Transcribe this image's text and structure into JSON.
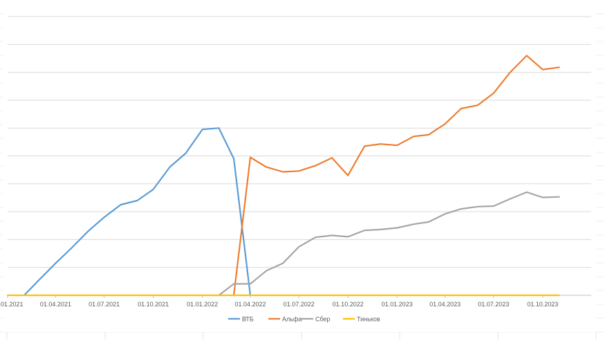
{
  "chart_data": {
    "type": "line",
    "title": "",
    "xlabel": "",
    "ylabel": "",
    "grid": true,
    "legend_position": "bottom",
    "x_ticks": [
      "01.01.2021",
      "01.04.2021",
      "01.07.2021",
      "01.10.2021",
      "01.01.2022",
      "01.04.2022",
      "01.07.2022",
      "01.10.2022",
      "01.01.2023",
      "01.04.2023",
      "01.07.2023",
      "01.10.2023"
    ],
    "x_range": [
      "2021-01-01",
      "2023-12-31"
    ],
    "ylim": [
      0,
      100
    ],
    "series": [
      {
        "name": "ВТБ",
        "color": "#5b9bd5",
        "points": [
          [
            "2021-02-01",
            0
          ],
          [
            "2021-03-01",
            5.5
          ],
          [
            "2021-04-01",
            11.5
          ],
          [
            "2021-05-01",
            17
          ],
          [
            "2021-06-01",
            23
          ],
          [
            "2021-07-01",
            28
          ],
          [
            "2021-08-01",
            32.5
          ],
          [
            "2021-09-01",
            34
          ],
          [
            "2021-10-01",
            38
          ],
          [
            "2021-11-01",
            46
          ],
          [
            "2021-12-01",
            51
          ],
          [
            "2022-01-01",
            59.5
          ],
          [
            "2022-02-01",
            60
          ],
          [
            "2022-03-01",
            49
          ],
          [
            "2022-04-01",
            0
          ]
        ]
      },
      {
        "name": "Альфа",
        "color": "#ed7d31",
        "points": [
          [
            "2022-03-01",
            0
          ],
          [
            "2022-04-01",
            49.5
          ],
          [
            "2022-05-01",
            46
          ],
          [
            "2022-06-01",
            44.3
          ],
          [
            "2022-07-01",
            44.6
          ],
          [
            "2022-08-01",
            46.5
          ],
          [
            "2022-09-01",
            49.3
          ],
          [
            "2022-10-01",
            43
          ],
          [
            "2022-11-01",
            53.5
          ],
          [
            "2022-12-01",
            54.3
          ],
          [
            "2023-01-01",
            53.8
          ],
          [
            "2023-02-01",
            57
          ],
          [
            "2023-03-01",
            57.6
          ],
          [
            "2023-04-01",
            61.5
          ],
          [
            "2023-05-01",
            67
          ],
          [
            "2023-06-01",
            68.2
          ],
          [
            "2023-07-01",
            72.5
          ],
          [
            "2023-08-01",
            80
          ],
          [
            "2023-09-01",
            86
          ],
          [
            "2023-10-01",
            81
          ],
          [
            "2023-11-01",
            81.8
          ]
        ]
      },
      {
        "name": "Сбер",
        "color": "#a5a5a5",
        "points": [
          [
            "2022-02-01",
            0
          ],
          [
            "2022-03-01",
            4.1
          ],
          [
            "2022-04-01",
            4.1
          ],
          [
            "2022-05-01",
            8.8
          ],
          [
            "2022-06-01",
            11.5
          ],
          [
            "2022-07-01",
            17.4
          ],
          [
            "2022-08-01",
            20.8
          ],
          [
            "2022-09-01",
            21.5
          ],
          [
            "2022-10-01",
            21
          ],
          [
            "2022-11-01",
            23.3
          ],
          [
            "2022-12-01",
            23.6
          ],
          [
            "2023-01-01",
            24.2
          ],
          [
            "2023-02-01",
            25.5
          ],
          [
            "2023-03-01",
            26.3
          ],
          [
            "2023-04-01",
            29.2
          ],
          [
            "2023-05-01",
            31
          ],
          [
            "2023-06-01",
            31.8
          ],
          [
            "2023-07-01",
            32
          ],
          [
            "2023-08-01",
            34.6
          ],
          [
            "2023-09-01",
            37
          ],
          [
            "2023-10-01",
            35.1
          ],
          [
            "2023-11-01",
            35.3
          ]
        ]
      },
      {
        "name": "Тиньков",
        "color": "#ffc000",
        "points": [
          [
            "2021-01-01",
            0
          ],
          [
            "2023-11-01",
            0
          ]
        ]
      }
    ]
  }
}
